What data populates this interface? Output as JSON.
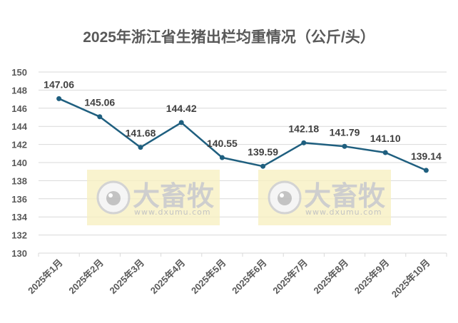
{
  "title": "2025年浙江省生猪出栏均重情况（公斤/头）",
  "watermark": {
    "brand": "大畜牧",
    "url": "www.dxumu.com",
    "bg_color": "#f7f0bf"
  },
  "colors": {
    "line": "#1f5f7f",
    "grid": "#d9d9d9",
    "axis_text": "#595959",
    "label_text": "#404040"
  },
  "chart_data": {
    "type": "line",
    "title": "2025年浙江省生猪出栏均重情况（公斤/头）",
    "xlabel": "",
    "ylabel": "",
    "categories": [
      "2025年1月",
      "2025年2月",
      "2025年3月",
      "2025年4月",
      "2025年5月",
      "2025年6月",
      "2025年7月",
      "2025年8月",
      "2025年9月",
      "2025年10月"
    ],
    "series": [
      {
        "name": "生猪出栏均重（公斤/头）",
        "values": [
          147.06,
          145.06,
          141.68,
          144.42,
          140.55,
          139.59,
          142.18,
          141.79,
          141.1,
          139.14
        ]
      }
    ],
    "value_labels": [
      "147.06",
      "145.06",
      "141.68",
      "144.42",
      "140.55",
      "139.59",
      "142.18",
      "141.79",
      "141.10",
      "139.14"
    ],
    "ylim": [
      130,
      150
    ],
    "yticks": [
      130,
      132,
      134,
      136,
      138,
      140,
      142,
      144,
      146,
      148,
      150
    ],
    "grid": true,
    "legend": "none",
    "markers": true
  }
}
